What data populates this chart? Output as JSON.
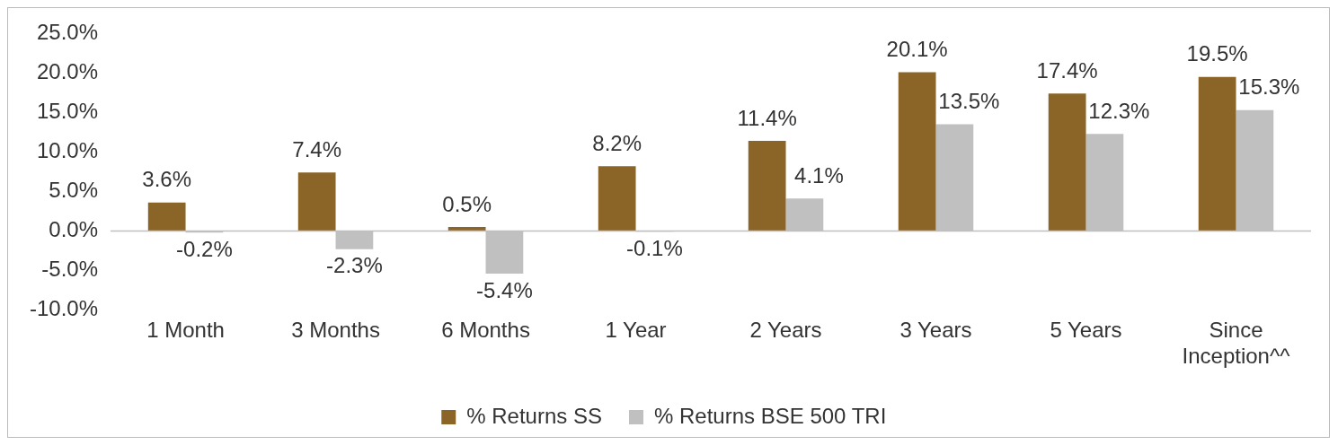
{
  "chart_data": {
    "type": "bar",
    "categories": [
      "1 Month",
      "3 Months",
      "6 Months",
      "1 Year",
      "2 Years",
      "3 Years",
      "5 Years",
      "Since Inception^^"
    ],
    "series": [
      {
        "name": "% Returns SS",
        "color": "#8b6428",
        "values": [
          3.6,
          7.4,
          0.5,
          8.2,
          11.4,
          20.1,
          17.4,
          19.5
        ],
        "value_labels": [
          "3.6%",
          "7.4%",
          "0.5%",
          "8.2%",
          "11.4%",
          "20.1%",
          "17.4%",
          "19.5%"
        ]
      },
      {
        "name": "% Returns BSE 500 TRI",
        "color": "#c0c0c0",
        "values": [
          -0.2,
          -2.3,
          -5.4,
          -0.1,
          4.1,
          13.5,
          12.3,
          15.3
        ],
        "value_labels": [
          "-0.2%",
          "-2.3%",
          "-5.4%",
          "-0.1%",
          "4.1%",
          "13.5%",
          "12.3%",
          "15.3%"
        ]
      }
    ],
    "ylim": [
      -10,
      25
    ],
    "yticks": [
      {
        "value": -10,
        "label": "-10.0%"
      },
      {
        "value": -5,
        "label": "-5.0%"
      },
      {
        "value": 0,
        "label": "0.0%"
      },
      {
        "value": 5,
        "label": "5.0%"
      },
      {
        "value": 10,
        "label": "10.0%"
      },
      {
        "value": 15,
        "label": "15.0%"
      },
      {
        "value": 20,
        "label": "20.0%"
      },
      {
        "value": 25,
        "label": "25.0%"
      }
    ],
    "ref_lines": [
      {
        "axis": "y",
        "value": 0,
        "color": "#bfbfbf"
      }
    ],
    "grid": false,
    "legend": "bottom"
  }
}
